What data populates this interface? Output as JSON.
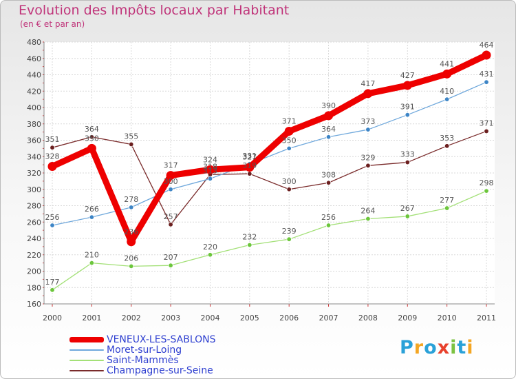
{
  "chart_data": {
    "type": "line",
    "title": "Evolution des Impôts locaux par Habitant",
    "subtitle": "(en € et par an)",
    "xlabel": "",
    "ylabel": "",
    "ylim": [
      160,
      480
    ],
    "yticks": [
      "160",
      "180",
      "200",
      "220",
      "240",
      "260",
      "280",
      "300",
      "320",
      "340",
      "360",
      "380",
      "400",
      "420",
      "440",
      "460",
      "480"
    ],
    "categories": [
      "2000",
      "2001",
      "2002",
      "2003",
      "2004",
      "2005",
      "2006",
      "2007",
      "2008",
      "2009",
      "2010",
      "2011"
    ],
    "grid": true,
    "legend_position": "bottom-left",
    "series": [
      {
        "name": "VENEUX-LES-SABLONS",
        "color": "#ee0000",
        "emphasis": true,
        "values": [
          328,
          350,
          236,
          317,
          324,
          327,
          371,
          390,
          417,
          427,
          441,
          464
        ],
        "labels": [
          "328",
          "350",
          "236",
          "317",
          "324",
          "327",
          "371",
          "390",
          "417",
          "427",
          "441",
          "464"
        ]
      },
      {
        "name": "Moret-sur-Loing",
        "color": "#6fa8dc",
        "point_color": "#3d85c6",
        "values": [
          256,
          266,
          278,
          300,
          313,
          331,
          350,
          364,
          373,
          391,
          410,
          431
        ],
        "labels": [
          "256",
          "266",
          "278",
          "300",
          "313",
          "331",
          "350",
          "364",
          "373",
          "391",
          "410",
          "431"
        ]
      },
      {
        "name": "Saint-Mammès",
        "color": "#a3e077",
        "point_color": "#6cc63c",
        "values": [
          177,
          210,
          206,
          207,
          220,
          232,
          239,
          256,
          264,
          267,
          277,
          298
        ],
        "labels": [
          "177",
          "210",
          "206",
          "207",
          "220",
          "232",
          "239",
          "256",
          "264",
          "267",
          "277",
          "298"
        ]
      },
      {
        "name": "Champagne-sur-Seine",
        "color": "#7a2b2b",
        "point_color": "#6b1f1f",
        "values": [
          351,
          364,
          355,
          257,
          318,
          319,
          300,
          308,
          329,
          333,
          353,
          371
        ],
        "labels": [
          "351",
          "364",
          "355",
          "257",
          "318",
          "319",
          "300",
          "308",
          "329",
          "333",
          "353",
          "371"
        ]
      }
    ]
  },
  "logo": {
    "letters": [
      "P",
      "r",
      "o",
      "x",
      "i",
      "t",
      "i"
    ],
    "colors": [
      "#2aa1d8",
      "#f4a623",
      "#2aa1d8",
      "#e8412c",
      "#7cc242",
      "#2aa1d8",
      "#f4a623"
    ]
  }
}
